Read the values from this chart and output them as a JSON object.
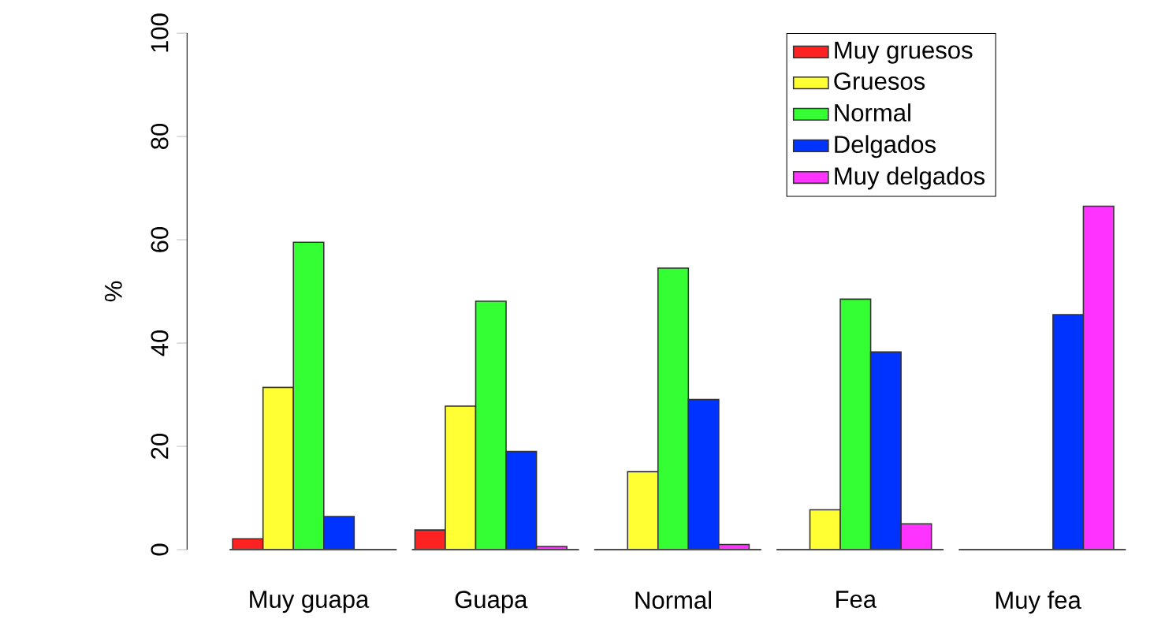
{
  "chart_data": {
    "type": "bar",
    "ylabel": "%",
    "categories": [
      "Muy guapa",
      "Guapa",
      "Normal",
      "Fea",
      "Muy fea"
    ],
    "series": [
      {
        "name": "Muy gruesos",
        "color": "#ff2222",
        "values": [
          2.1,
          3.8,
          null,
          null,
          null
        ]
      },
      {
        "name": "Gruesos",
        "color": "#ffff33",
        "values": [
          31.4,
          27.8,
          15.1,
          7.7,
          null
        ]
      },
      {
        "name": "Normal",
        "color": "#33ff33",
        "values": [
          59.5,
          48.1,
          54.5,
          48.5,
          null
        ]
      },
      {
        "name": "Delgados",
        "color": "#0033ff",
        "values": [
          6.4,
          19,
          29.1,
          38.3,
          45.5
        ]
      },
      {
        "name": "Muy delgados",
        "color": "#ff33ff",
        "values": [
          null,
          0.6,
          1,
          5,
          66.5
        ]
      }
    ],
    "ylim": [
      0,
      100
    ],
    "yticks": [
      0,
      20,
      40,
      60,
      80,
      100
    ],
    "legend": "top right"
  }
}
